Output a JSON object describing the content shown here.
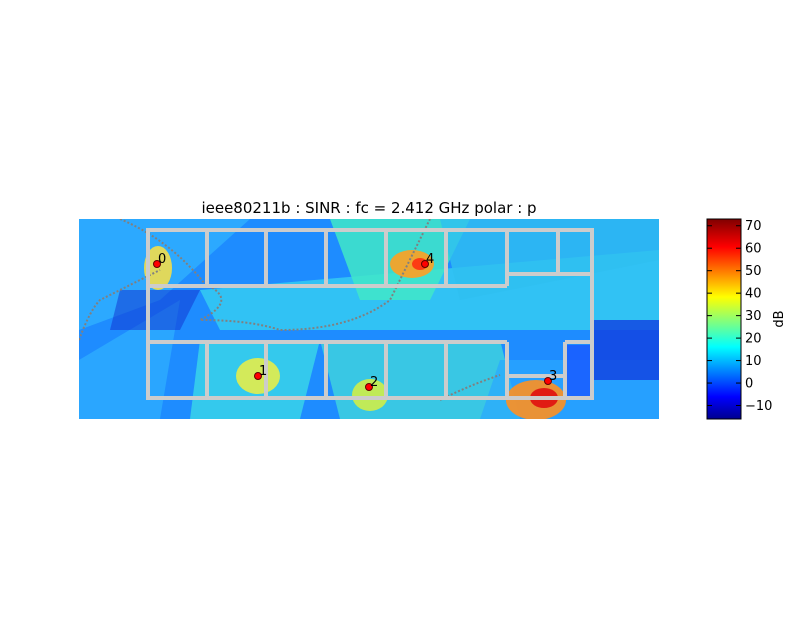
{
  "chart_data": {
    "type": "heatmap",
    "title": "ieee80211b : SINR :  fc = 2.412 GHz polar : p",
    "metric": "SINR",
    "standard": "ieee80211b",
    "frequency": "2.412 GHz",
    "polarization": "p",
    "access_points": [
      {
        "label": "0",
        "color": "#ff0000"
      },
      {
        "label": "1",
        "color": "#ff0000"
      },
      {
        "label": "2",
        "color": "#ff0000"
      },
      {
        "label": "3",
        "color": "#ff0000"
      },
      {
        "label": "4",
        "color": "#ff0000"
      }
    ],
    "colorbar": {
      "label": "dB",
      "range": [
        -16,
        73
      ],
      "ticks": [
        "−10",
        "0",
        "10",
        "20",
        "30",
        "40",
        "50",
        "60",
        "70"
      ],
      "tick_values": [
        -10,
        0,
        10,
        20,
        30,
        40,
        50,
        60,
        70
      ],
      "colormap": "jet"
    },
    "axes_visible": false,
    "wall_color": "#cccccc",
    "marker_color": "#ff0000"
  }
}
